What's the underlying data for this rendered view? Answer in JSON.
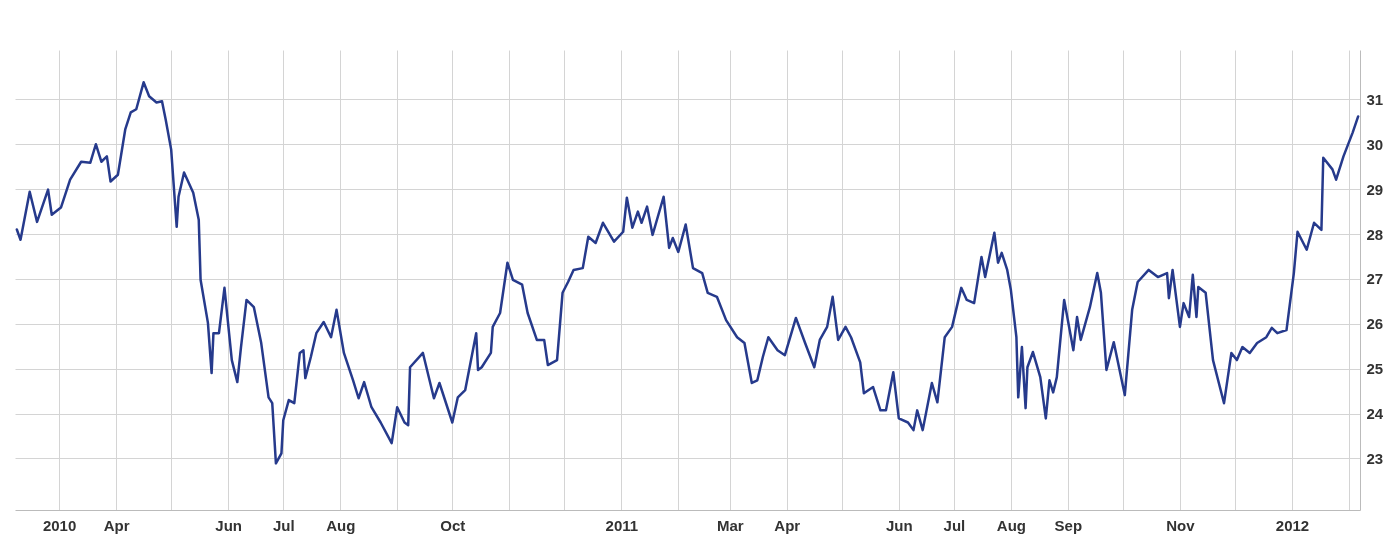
{
  "chart_data": {
    "type": "line",
    "x": [
      "2010-02-06",
      "2010-02-08",
      "2010-02-13",
      "2010-02-17",
      "2010-02-23",
      "2010-02-25",
      "2010-03-02",
      "2010-03-07",
      "2010-03-13",
      "2010-03-18",
      "2010-03-21",
      "2010-03-24",
      "2010-03-27",
      "2010-03-29",
      "2010-04-02",
      "2010-04-06",
      "2010-04-09",
      "2010-04-12",
      "2010-04-16",
      "2010-04-19",
      "2010-04-23",
      "2010-04-26",
      "2010-04-28",
      "2010-05-01",
      "2010-05-04",
      "2010-05-05",
      "2010-05-08",
      "2010-05-13",
      "2010-05-16",
      "2010-05-17",
      "2010-05-21",
      "2010-05-23",
      "2010-05-24",
      "2010-05-27",
      "2010-05-30",
      "2010-06-03",
      "2010-06-06",
      "2010-06-08",
      "2010-06-11",
      "2010-06-15",
      "2010-06-19",
      "2010-06-23",
      "2010-06-25",
      "2010-06-27",
      "2010-06-30",
      "2010-07-01",
      "2010-07-04",
      "2010-07-07",
      "2010-07-10",
      "2010-07-12",
      "2010-07-13",
      "2010-07-16",
      "2010-07-19",
      "2010-07-23",
      "2010-07-27",
      "2010-07-30",
      "2010-08-03",
      "2010-08-08",
      "2010-08-11",
      "2010-08-14",
      "2010-08-18",
      "2010-08-23",
      "2010-08-29",
      "2010-09-01",
      "2010-09-05",
      "2010-09-07",
      "2010-09-08",
      "2010-09-15",
      "2010-09-21",
      "2010-09-24",
      "2010-10-01",
      "2010-10-04",
      "2010-10-08",
      "2010-10-14",
      "2010-10-15",
      "2010-10-17",
      "2010-10-22",
      "2010-10-23",
      "2010-10-27",
      "2010-10-31",
      "2010-11-03",
      "2010-11-08",
      "2010-11-11",
      "2010-11-16",
      "2010-11-20",
      "2010-11-22",
      "2010-11-27",
      "2010-11-30",
      "2010-12-03",
      "2010-12-06",
      "2010-12-11",
      "2010-12-14",
      "2010-12-18",
      "2010-12-22",
      "2010-12-28",
      "2011-01-02",
      "2011-01-04",
      "2011-01-07",
      "2011-01-10",
      "2011-01-12",
      "2011-01-15",
      "2011-01-18",
      "2011-01-24",
      "2011-01-27",
      "2011-01-29",
      "2011-02-01",
      "2011-02-05",
      "2011-02-09",
      "2011-02-14",
      "2011-02-17",
      "2011-02-22",
      "2011-02-27",
      "2011-03-05",
      "2011-03-09",
      "2011-03-13",
      "2011-03-16",
      "2011-03-19",
      "2011-03-22",
      "2011-03-27",
      "2011-03-31",
      "2011-04-06",
      "2011-04-11",
      "2011-04-16",
      "2011-04-19",
      "2011-04-23",
      "2011-04-26",
      "2011-04-29",
      "2011-05-03",
      "2011-05-06",
      "2011-05-11",
      "2011-05-13",
      "2011-05-18",
      "2011-05-22",
      "2011-05-25",
      "2011-05-29",
      "2011-06-01",
      "2011-06-06",
      "2011-06-09",
      "2011-06-11",
      "2011-06-14",
      "2011-06-19",
      "2011-06-22",
      "2011-06-26",
      "2011-06-30",
      "2011-07-05",
      "2011-07-08",
      "2011-07-12",
      "2011-07-16",
      "2011-07-18",
      "2011-07-23",
      "2011-07-25",
      "2011-07-27",
      "2011-07-30",
      "2011-08-01",
      "2011-08-04",
      "2011-08-05",
      "2011-08-07",
      "2011-08-09",
      "2011-08-10",
      "2011-08-13",
      "2011-08-17",
      "2011-08-20",
      "2011-08-22",
      "2011-08-24",
      "2011-08-26",
      "2011-08-30",
      "2011-09-04",
      "2011-09-06",
      "2011-09-08",
      "2011-09-13",
      "2011-09-17",
      "2011-09-19",
      "2011-09-22",
      "2011-09-26",
      "2011-10-02",
      "2011-10-06",
      "2011-10-09",
      "2011-10-15",
      "2011-10-20",
      "2011-10-25",
      "2011-10-26",
      "2011-10-28",
      "2011-11-01",
      "2011-11-03",
      "2011-11-06",
      "2011-11-08",
      "2011-11-10",
      "2011-11-11",
      "2011-11-15",
      "2011-11-19",
      "2011-11-25",
      "2011-11-29",
      "2011-12-02",
      "2011-12-05",
      "2011-12-09",
      "2011-12-13",
      "2011-12-18",
      "2011-12-21",
      "2011-12-24",
      "2011-12-29",
      "2012-01-02",
      "2012-01-04",
      "2012-01-09",
      "2012-01-13",
      "2012-01-17",
      "2012-01-18",
      "2012-01-23",
      "2012-01-25",
      "2012-01-29",
      "2012-02-03",
      "2012-02-06"
    ],
    "series": [
      {
        "color": "#263a8c",
        "values": [
          28.1,
          27.87,
          28.94,
          28.27,
          28.99,
          28.43,
          28.59,
          29.21,
          29.61,
          29.59,
          30.0,
          29.61,
          29.73,
          29.17,
          29.32,
          30.33,
          30.71,
          30.78,
          31.38,
          31.07,
          30.93,
          30.96,
          30.55,
          29.88,
          28.16,
          28.83,
          29.37,
          28.92,
          28.32,
          26.98,
          26.02,
          24.9,
          25.79,
          25.79,
          26.8,
          25.19,
          24.7,
          25.48,
          26.53,
          26.37,
          25.57,
          24.36,
          24.23,
          22.89,
          23.11,
          23.85,
          24.3,
          24.23,
          25.35,
          25.41,
          24.79,
          25.26,
          25.79,
          26.04,
          25.7,
          26.31,
          25.35,
          24.74,
          24.34,
          24.7,
          24.14,
          23.8,
          23.34,
          24.14,
          23.8,
          23.74,
          25.03,
          25.35,
          24.34,
          24.68,
          23.8,
          24.36,
          24.52,
          25.79,
          24.97,
          25.03,
          25.35,
          25.93,
          26.24,
          27.36,
          26.98,
          26.87,
          26.24,
          25.64,
          25.64,
          25.08,
          25.19,
          26.69,
          26.93,
          27.2,
          27.24,
          27.94,
          27.8,
          28.25,
          27.83,
          28.05,
          28.81,
          28.14,
          28.5,
          28.25,
          28.61,
          27.98,
          28.83,
          27.69,
          27.91,
          27.6,
          28.21,
          27.24,
          27.13,
          26.69,
          26.6,
          26.08,
          25.7,
          25.57,
          24.68,
          24.74,
          25.26,
          25.7,
          25.41,
          25.3,
          26.13,
          25.57,
          25.03,
          25.64,
          25.93,
          26.6,
          25.64,
          25.93,
          25.7,
          25.14,
          24.45,
          24.59,
          24.07,
          24.07,
          24.92,
          23.89,
          23.8,
          23.63,
          24.07,
          23.63,
          24.68,
          24.25,
          25.7,
          25.93,
          26.8,
          26.53,
          26.46,
          27.49,
          27.04,
          28.03,
          27.36,
          27.58,
          27.2,
          26.75,
          25.7,
          24.36,
          25.48,
          24.12,
          25.03,
          25.37,
          24.81,
          23.89,
          24.74,
          24.47,
          24.81,
          26.53,
          25.41,
          26.15,
          25.64,
          26.37,
          27.13,
          26.69,
          24.97,
          25.59,
          24.41,
          26.31,
          26.93,
          27.2,
          27.04,
          27.13,
          26.57,
          27.2,
          25.93,
          26.46,
          26.15,
          27.09,
          26.15,
          26.82,
          26.69,
          25.19,
          24.23,
          25.35,
          25.19,
          25.48,
          25.35,
          25.57,
          25.7,
          25.91,
          25.79,
          25.86,
          27.13,
          28.05,
          27.65,
          28.25,
          28.09,
          29.7,
          29.44,
          29.21,
          29.73,
          30.26,
          30.62
        ]
      }
    ],
    "xlim": [
      "2010-02-05",
      "2012-02-07"
    ],
    "xticks": [
      {
        "value": "2010-03-01",
        "label": "2010"
      },
      {
        "value": "2010-04-01",
        "label": "Apr"
      },
      {
        "value": "2010-05-01",
        "label": null
      },
      {
        "value": "2010-06-01",
        "label": "Jun"
      },
      {
        "value": "2010-07-01",
        "label": "Jul"
      },
      {
        "value": "2010-08-01",
        "label": "Aug"
      },
      {
        "value": "2010-09-01",
        "label": null
      },
      {
        "value": "2010-10-01",
        "label": "Oct"
      },
      {
        "value": "2010-11-01",
        "label": null
      },
      {
        "value": "2010-12-01",
        "label": null
      },
      {
        "value": "2011-01-01",
        "label": "2011"
      },
      {
        "value": "2011-02-01",
        "label": null
      },
      {
        "value": "2011-03-01",
        "label": "Mar"
      },
      {
        "value": "2011-04-01",
        "label": "Apr"
      },
      {
        "value": "2011-05-01",
        "label": null
      },
      {
        "value": "2011-06-01",
        "label": "Jun"
      },
      {
        "value": "2011-07-01",
        "label": "Jul"
      },
      {
        "value": "2011-08-01",
        "label": "Aug"
      },
      {
        "value": "2011-09-01",
        "label": "Sep"
      },
      {
        "value": "2011-10-01",
        "label": null
      },
      {
        "value": "2011-11-01",
        "label": "Nov"
      },
      {
        "value": "2011-12-01",
        "label": null
      },
      {
        "value": "2012-01-01",
        "label": "2012"
      },
      {
        "value": "2012-02-01",
        "label": null
      }
    ],
    "ylim": [
      21.85,
      32.1
    ],
    "yticks": [
      23,
      24,
      25,
      26,
      27,
      28,
      29,
      30,
      31
    ],
    "grid": true
  }
}
